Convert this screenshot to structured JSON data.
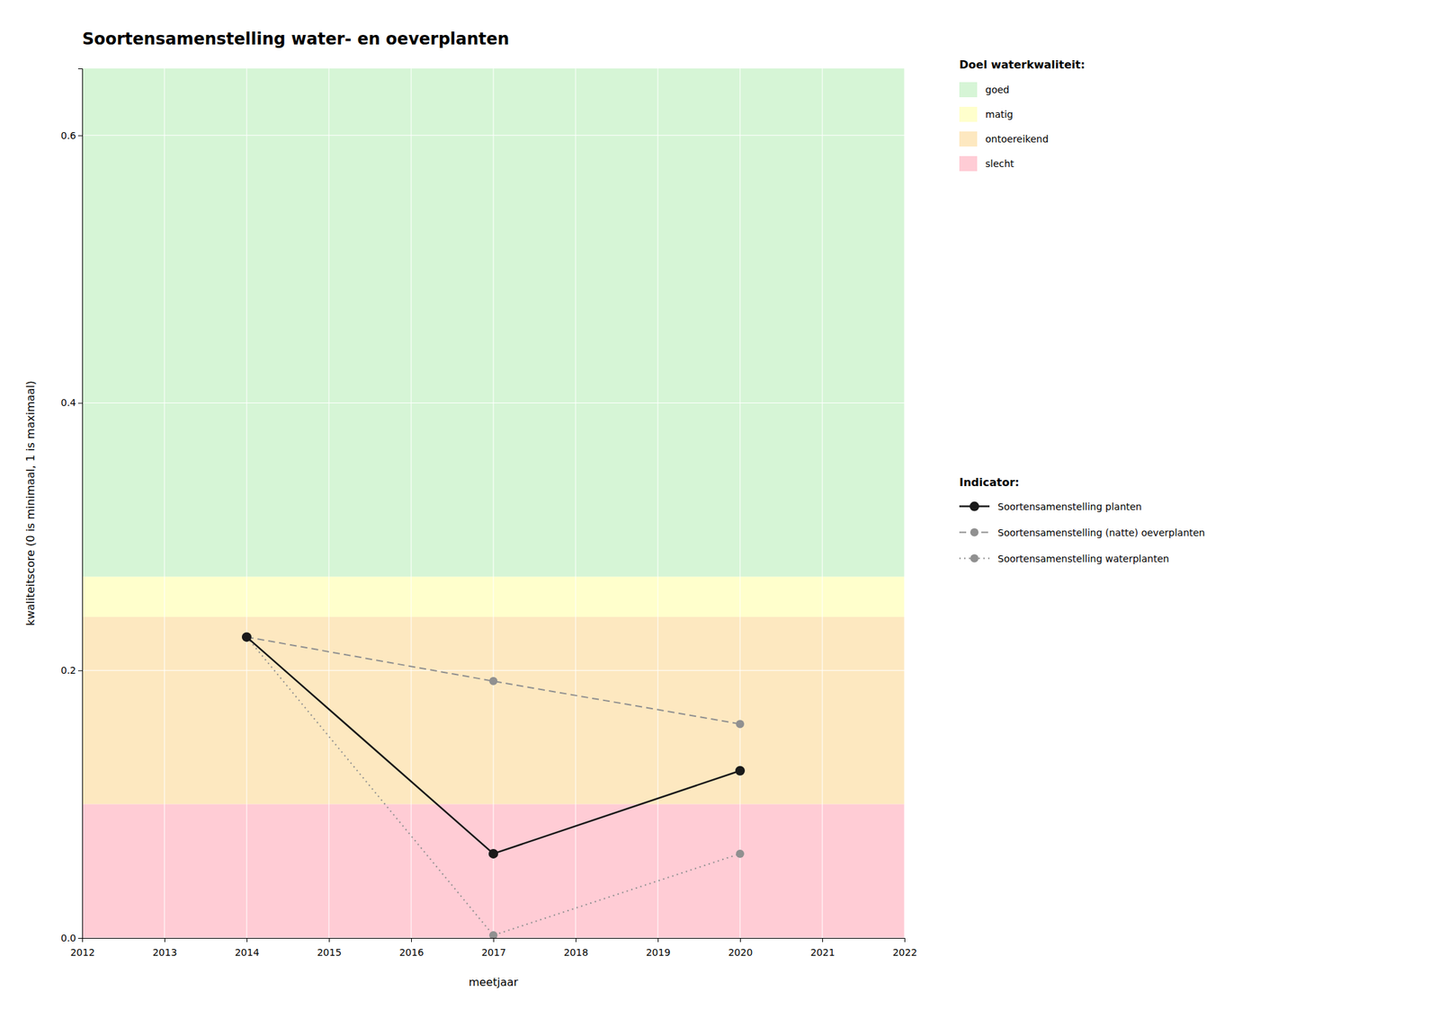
{
  "chart_data": {
    "type": "line",
    "title": "Soortensamenstelling water- en oeverplanten",
    "x_label": "meetjaar",
    "y_label": "kwaliteitscore (0 is minimaal, 1 is maximaal)",
    "x": [
      2014,
      2017,
      2020
    ],
    "xlim": [
      2012,
      2022
    ],
    "xticks": [
      2012,
      2013,
      2014,
      2015,
      2016,
      2017,
      2018,
      2019,
      2020,
      2021,
      2022
    ],
    "ylim": [
      0,
      0.65
    ],
    "yticks": [
      {
        "value": 0,
        "label": "0.0"
      },
      0.2,
      0.4,
      0.6
    ],
    "grid": true,
    "legend": "right",
    "bands_title": "Doel waterkwaliteit:",
    "bands": [
      {
        "name": "goed",
        "from": 0.27,
        "to": 0.65,
        "color": "#d6f5d6"
      },
      {
        "name": "matig",
        "from": 0.24,
        "to": 0.27,
        "color": "#ffffcc"
      },
      {
        "name": "ontoereikend",
        "from": 0.1,
        "to": 0.24,
        "color": "#fde8c0"
      },
      {
        "name": "slecht",
        "from": 0.0,
        "to": 0.1,
        "color": "#ffccd5"
      }
    ],
    "legend_title": "Indicator:",
    "series": [
      {
        "name": "Soortensamenstelling planten",
        "color": "#1a1a1a",
        "line_style": "solid",
        "marker": "circle",
        "values": [
          0.225,
          0.063,
          0.125
        ]
      },
      {
        "name": "Soortensamenstelling (natte) oeverplanten",
        "color": "#909090",
        "line_style": "dashed",
        "marker": "circle",
        "values": [
          0.225,
          0.192,
          0.16
        ]
      },
      {
        "name": "Soortensamenstelling waterplanten",
        "color": "#909090",
        "line_style": "dotted",
        "marker": "circle",
        "values": [
          0.225,
          0.002,
          0.063
        ]
      }
    ]
  }
}
